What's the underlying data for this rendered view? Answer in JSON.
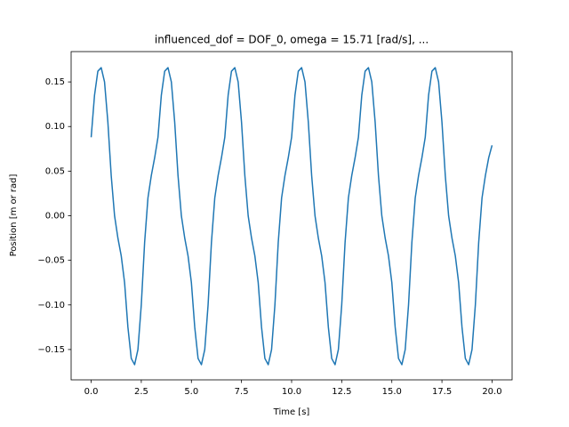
{
  "chart_data": {
    "type": "line",
    "title": "influenced_dof = DOF_0, omega = 15.71 [rad/s], ...",
    "x_label": "Time [s]",
    "y_label": "Position [m or rad]",
    "x": [
      0,
      0.167,
      0.333,
      0.5,
      0.667,
      0.833,
      1,
      1.167,
      1.333,
      1.5,
      1.667,
      1.833,
      2,
      2.167,
      2.333,
      2.5,
      2.667,
      2.833,
      3,
      3.167,
      3.333,
      3.5,
      3.667,
      3.833,
      4,
      4.167,
      4.333,
      4.5,
      4.667,
      4.833,
      5,
      5.167,
      5.333,
      5.5,
      5.667,
      5.833,
      6,
      6.167,
      6.333,
      6.5,
      6.667,
      6.833,
      7,
      7.167,
      7.333,
      7.5,
      7.667,
      7.833,
      8,
      8.167,
      8.333,
      8.5,
      8.667,
      8.833,
      9,
      9.167,
      9.333,
      9.5,
      9.667,
      9.833,
      10,
      10.167,
      10.333,
      10.5,
      10.667,
      10.833,
      11,
      11.167,
      11.333,
      11.5,
      11.667,
      11.833,
      12,
      12.167,
      12.333,
      12.5,
      12.667,
      12.833,
      13,
      13.167,
      13.333,
      13.5,
      13.667,
      13.833,
      14,
      14.167,
      14.333,
      14.5,
      14.667,
      14.833,
      15,
      15.167,
      15.333,
      15.5,
      15.667,
      15.833,
      16,
      16.167,
      16.333,
      16.5,
      16.667,
      16.833,
      17,
      17.167,
      17.333,
      17.5,
      17.667,
      17.833,
      18,
      18.167,
      18.333,
      18.5,
      18.667,
      18.833,
      19,
      19.167,
      19.333,
      19.5,
      19.667,
      19.833,
      20
    ],
    "series": [
      {
        "color": "#1f77b4",
        "values": [
          0.088,
          0.135,
          0.162,
          0.166,
          0.15,
          0.105,
          0.045,
          0.0,
          -0.025,
          -0.045,
          -0.075,
          -0.125,
          -0.16,
          -0.167,
          -0.15,
          -0.1,
          -0.03,
          0.02,
          0.045,
          0.065,
          0.088,
          0.135,
          0.162,
          0.166,
          0.15,
          0.105,
          0.045,
          0.0,
          -0.025,
          -0.045,
          -0.075,
          -0.125,
          -0.16,
          -0.167,
          -0.15,
          -0.1,
          -0.03,
          0.02,
          0.045,
          0.065,
          0.088,
          0.135,
          0.162,
          0.166,
          0.15,
          0.105,
          0.045,
          0.0,
          -0.025,
          -0.045,
          -0.075,
          -0.125,
          -0.16,
          -0.167,
          -0.15,
          -0.1,
          -0.03,
          0.02,
          0.045,
          0.065,
          0.088,
          0.135,
          0.162,
          0.166,
          0.15,
          0.105,
          0.045,
          0.0,
          -0.025,
          -0.045,
          -0.075,
          -0.125,
          -0.16,
          -0.167,
          -0.15,
          -0.1,
          -0.03,
          0.02,
          0.045,
          0.065,
          0.088,
          0.135,
          0.162,
          0.166,
          0.15,
          0.105,
          0.045,
          0.0,
          -0.025,
          -0.045,
          -0.075,
          -0.125,
          -0.16,
          -0.167,
          -0.15,
          -0.1,
          -0.03,
          0.02,
          0.045,
          0.065,
          0.088,
          0.135,
          0.162,
          0.166,
          0.15,
          0.105,
          0.045,
          0.0,
          -0.025,
          -0.045,
          -0.075,
          -0.125,
          -0.16,
          -0.167,
          -0.15,
          -0.1,
          -0.03,
          0.02,
          0.045,
          0.065,
          0.079
        ]
      }
    ],
    "xlim": [
      -1,
      21
    ],
    "ylim": [
      -0.184,
      0.184
    ],
    "xticks": [
      {
        "value": 0,
        "label": "0.0"
      },
      {
        "value": 2.5,
        "label": "2.5"
      },
      {
        "value": 5,
        "label": "5.0"
      },
      {
        "value": 7.5,
        "label": "7.5"
      },
      {
        "value": 10,
        "label": "10.0"
      },
      {
        "value": 12.5,
        "label": "12.5"
      },
      {
        "value": 15,
        "label": "15.0"
      },
      {
        "value": 17.5,
        "label": "17.5"
      },
      {
        "value": 20,
        "label": "20.0"
      }
    ],
    "yticks": [
      {
        "value": -0.15,
        "label": "−0.15"
      },
      {
        "value": -0.1,
        "label": "−0.10"
      },
      {
        "value": -0.05,
        "label": "−0.05"
      },
      {
        "value": 0,
        "label": "0.00"
      },
      {
        "value": 0.05,
        "label": "0.05"
      },
      {
        "value": 0.1,
        "label": "0.10"
      },
      {
        "value": 0.15,
        "label": "0.15"
      }
    ],
    "grid": false
  }
}
